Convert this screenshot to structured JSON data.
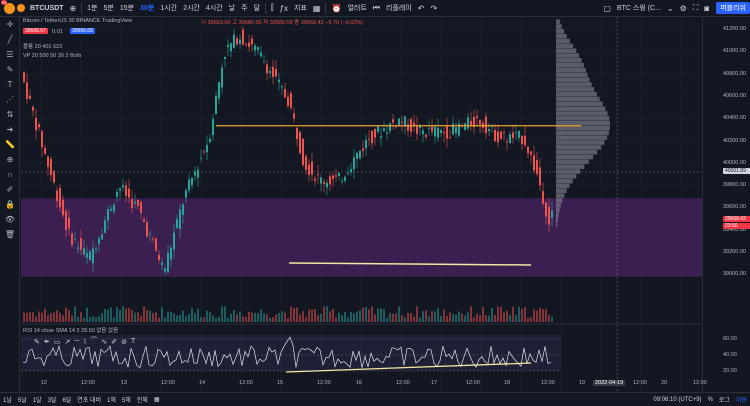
{
  "toolbar": {
    "avatar_badge": "99",
    "symbol": "BTCUSDT",
    "timeframes": [
      "1분",
      "5분",
      "15분",
      "30분",
      "1시간",
      "2시간",
      "4시간",
      "날",
      "주",
      "달"
    ],
    "active_timeframe_index": 3,
    "indicators_label": "지표",
    "alert_label": "얼러트",
    "replay_label": "리플레이",
    "watch_label": "BTC 스윙 (C...",
    "publish_label": "퍼블리쉬"
  },
  "legend": {
    "title": "Bitcoin / TetherUS  30  BINANCE  TradingView",
    "ohlc": "시 39659.00 고 39680.00 저 39580.05 종 39668.42 −9.70 (−0.02%)",
    "bid": "39666.67",
    "spread": "0.01",
    "ask": "39666.68",
    "bb": "볼롱 20 401 623",
    "vp": "VP 20 500 50 30 2 Both",
    "rsi": "RSI 14 close SMA 14 2  28.50  없음  없음"
  },
  "price_axis": {
    "labels": [
      "41200.00",
      "41000.00",
      "40800.00",
      "40600.00",
      "40400.00",
      "40200.00",
      "40000.00",
      "39800.00",
      "39600.00",
      "39400.00",
      "39200.00",
      "39000.00"
    ],
    "crosshair_label": "40061.89",
    "current_price": "39668.42",
    "countdown": "23:50",
    "rsi_labels": [
      "60.00",
      "40.00",
      "20.00"
    ]
  },
  "time_axis": {
    "labels": [
      "12",
      "12:00",
      "13",
      "12:00",
      "14",
      "12:00",
      "15",
      "12:00",
      "16",
      "12:00",
      "17",
      "12:00",
      "18",
      "12:00",
      "19",
      "2022-04-19",
      "12:00",
      "20",
      "12:00"
    ],
    "highlight_index": 15
  },
  "bottom": {
    "ranges": [
      "1날",
      "5날",
      "1달",
      "3달",
      "6달",
      "연초 대비",
      "1해",
      "5해",
      "전체"
    ],
    "clock": "09:06:10 (UTC+9)",
    "pct": "%",
    "log": "로그",
    "auto": "자동"
  },
  "colors": {
    "up": "#26a69a",
    "down": "#ef5350",
    "orange_line": "#f0a030",
    "yellow_line": "#f5e6a0",
    "purple_zone": "#6a2b8a"
  },
  "chart_data": {
    "type": "candlestick",
    "price_range": [
      38900,
      41300
    ],
    "volume_profile_peak": 40400,
    "horizontal_level": 40400,
    "support_zone": [
      39150,
      39800
    ],
    "rsi_range": [
      15,
      75
    ]
  }
}
